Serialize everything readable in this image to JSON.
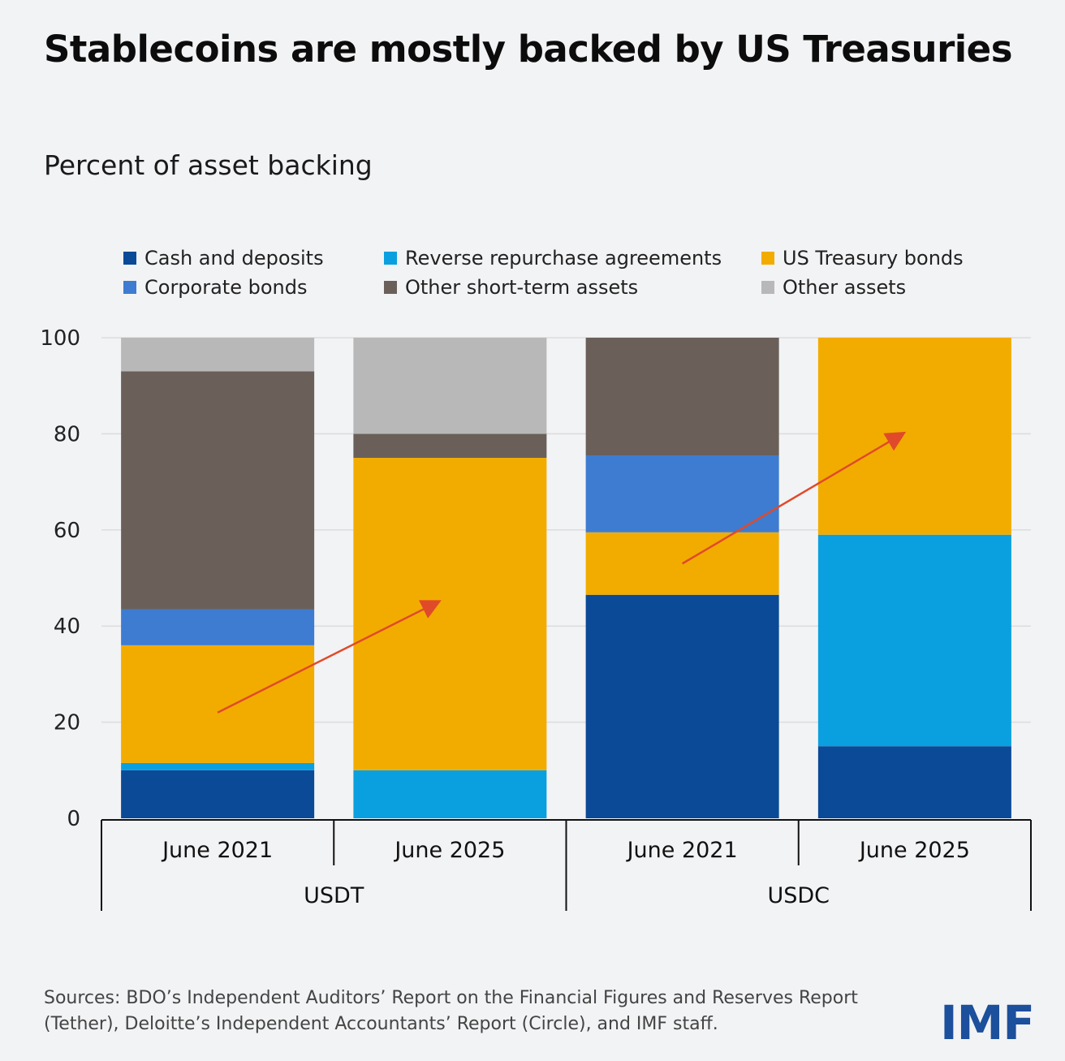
{
  "title": "Stablecoins are mostly backed by US Treasuries",
  "subtitle": "Percent of asset backing",
  "legend": [
    {
      "label": "Cash and deposits",
      "color": "#0b4a96"
    },
    {
      "label": "Reverse repurchase agreements",
      "color": "#0aa0e0"
    },
    {
      "label": "US Treasury bonds",
      "color": "#f2ac00"
    },
    {
      "label": "Corporate bonds",
      "color": "#3d7cd0"
    },
    {
      "label": "Other short-term assets",
      "color": "#6a6059"
    },
    {
      "label": "Other assets",
      "color": "#b8b8b8"
    }
  ],
  "chart_data": {
    "type": "bar",
    "stacked": true,
    "ylim": [
      0,
      100
    ],
    "yticks": [
      0,
      20,
      40,
      60,
      80,
      100
    ],
    "categories": [
      "June 2021",
      "June 2025",
      "June 2021",
      "June 2025"
    ],
    "groups": [
      {
        "label": "USDT",
        "categories": [
          "June 2021",
          "June 2025"
        ]
      },
      {
        "label": "USDC",
        "categories": [
          "June 2021",
          "June 2025"
        ]
      }
    ],
    "series": [
      {
        "name": "Cash and deposits",
        "color": "#0b4a96",
        "values": [
          10,
          0,
          46.5,
          15
        ]
      },
      {
        "name": "Reverse repurchase agreements",
        "color": "#0aa0e0",
        "values": [
          1.5,
          10,
          0,
          44
        ]
      },
      {
        "name": "US Treasury bonds",
        "color": "#f2ac00",
        "values": [
          24.5,
          65,
          13,
          41
        ]
      },
      {
        "name": "Corporate bonds",
        "color": "#3d7cd0",
        "values": [
          7.5,
          0,
          16,
          0
        ]
      },
      {
        "name": "Other short-term assets",
        "color": "#6a6059",
        "values": [
          49.5,
          5,
          24.5,
          0
        ]
      },
      {
        "name": "Other assets",
        "color": "#b8b8b8",
        "values": [
          7,
          20,
          0,
          0
        ]
      }
    ],
    "arrows": [
      {
        "group": "USDT",
        "from": {
          "category": 0,
          "value": 22
        },
        "to": {
          "category": 1,
          "value": 45
        }
      },
      {
        "group": "USDC",
        "from": {
          "category": 0,
          "value": 53
        },
        "to": {
          "category": 1,
          "value": 80
        }
      }
    ]
  },
  "sources": "Sources: BDO’s Independent Auditors’ Report on the Financial Figures and Reserves Report (Tether), Deloitte’s Independent Accountants’ Report (Circle), and IMF staff.",
  "logo_text": "IMF"
}
